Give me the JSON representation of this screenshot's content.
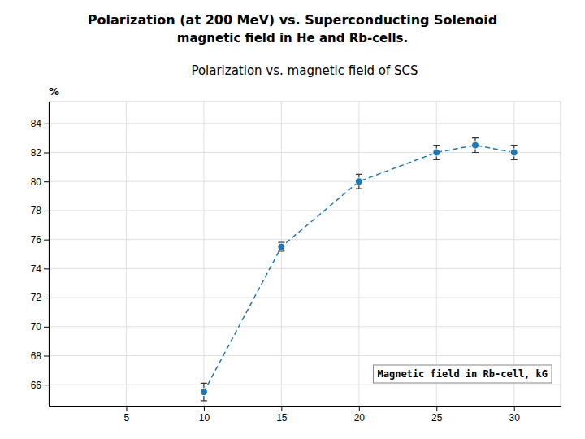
{
  "chart_data": {
    "type": "line",
    "title": "Polarization (at 200 MeV) vs. Superconducting Solenoid",
    "subtitle": "magnetic field in He and Rb-cells.",
    "annotations": [
      "Polarization vs. magnetic field of SCS"
    ],
    "x_label": "Magnetic field in Rb-cell, kG",
    "y_label": "%",
    "x": [
      10,
      15,
      20,
      25,
      27.5,
      30
    ],
    "values": [
      65.5,
      75.5,
      80.0,
      82.0,
      82.5,
      82.0
    ],
    "errors": [
      0.6,
      0.3,
      0.5,
      0.5,
      0.5,
      0.5
    ],
    "xlim": [
      0,
      33
    ],
    "ylim": [
      64.5,
      85.5
    ],
    "xticks": [
      5,
      10,
      15,
      20,
      25,
      30
    ],
    "yticks": [
      66,
      68,
      70,
      72,
      74,
      76,
      78,
      80,
      82,
      84
    ],
    "grid": true,
    "marker": "circle",
    "line_style": "dashed"
  }
}
